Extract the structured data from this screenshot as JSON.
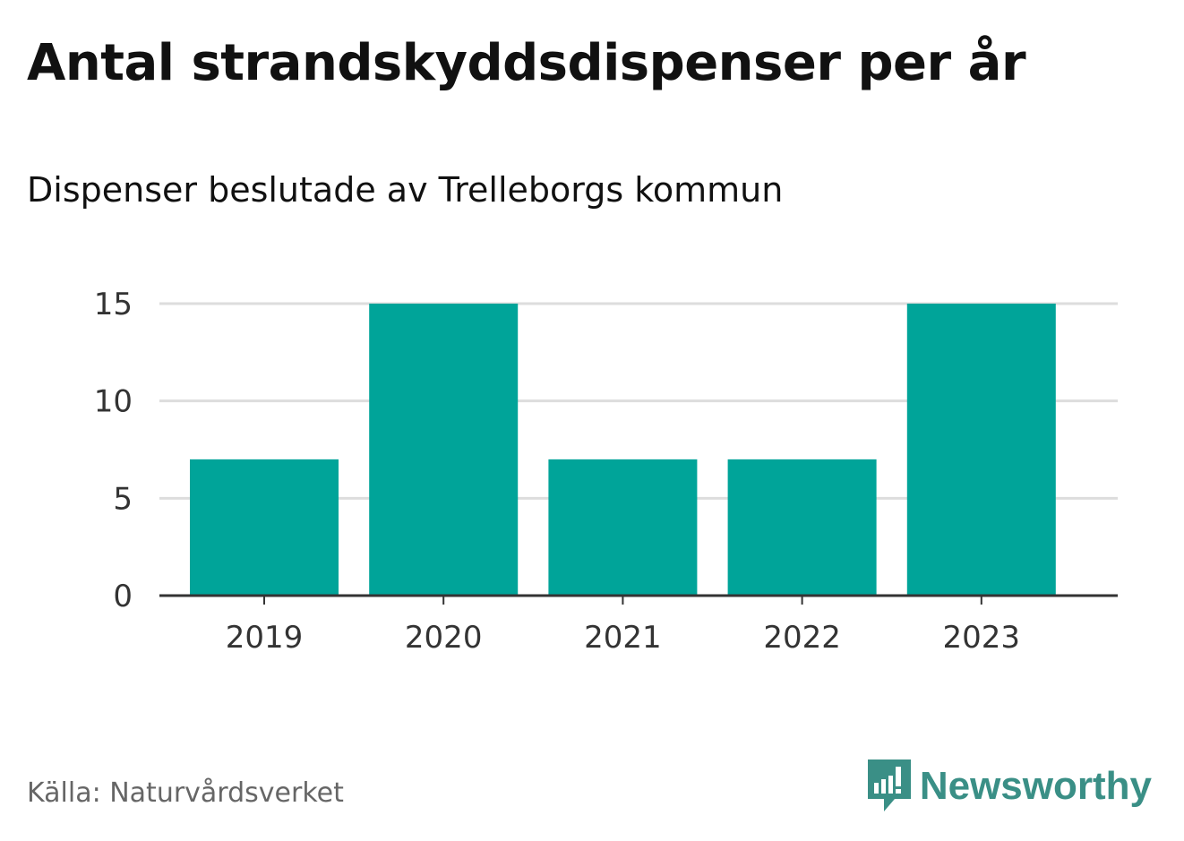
{
  "title": "Antal strandskyddsdispenser per år",
  "subtitle": "Dispenser beslutade av Trelleborgs kommun",
  "source": "Källa: Naturvårdsverket",
  "brand": "Newsworthy",
  "colors": {
    "bar": "#00a499",
    "grid": "#dddddd",
    "axis": "#333333",
    "brand": "#3a8f86"
  },
  "chart_data": {
    "type": "bar",
    "categories": [
      "2019",
      "2020",
      "2021",
      "2022",
      "2023"
    ],
    "values": [
      7,
      15,
      7,
      7,
      15
    ],
    "ylim": [
      0,
      15
    ],
    "yticks": [
      0,
      5,
      10,
      15
    ],
    "title": "Antal strandskyddsdispenser per år",
    "xlabel": "",
    "ylabel": "",
    "grid": true
  }
}
